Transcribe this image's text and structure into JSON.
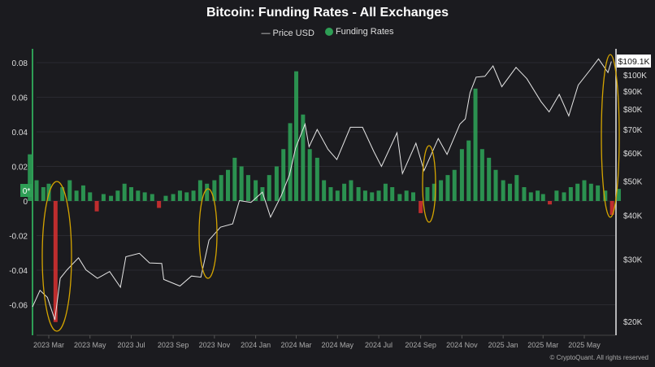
{
  "title": "Bitcoin: Funding Rates - All Exchanges",
  "legend": {
    "price": "— Price USD",
    "funding": "Funding Rates"
  },
  "watermark": "© CryptoQuant. All rights reserved",
  "colors": {
    "background": "#1b1b1f",
    "price": "#e6e6e6",
    "positive": "#2e9e55",
    "negative": "#d03030",
    "annotation": "#d4a400"
  },
  "chart_data": {
    "type": "bar+line",
    "title": "Bitcoin: Funding Rates - All Exchanges",
    "left_axis": {
      "ticks": [
        "0.08",
        "0.06",
        "0.04",
        "0.02",
        "0",
        "-0.02",
        "-0.04",
        "-0.06"
      ],
      "values": [
        0.08,
        0.06,
        0.04,
        0.02,
        0,
        -0.02,
        -0.04,
        -0.06
      ],
      "range": [
        -0.077,
        0.0865
      ]
    },
    "right_axis": {
      "scale": "log",
      "ticks": [
        "$100K",
        "$90K",
        "$80K",
        "$70K",
        "$60K",
        "$50K",
        "$40K",
        "$30K",
        "$20K"
      ],
      "values": [
        100000,
        90000,
        80000,
        70000,
        60000,
        50000,
        40000,
        30000,
        20000
      ],
      "current_label": "$109.1K",
      "current_value": 109100
    },
    "zero_label": "0*",
    "x_ticks": [
      {
        "label": "2023 Mar",
        "date": "2023-03-01"
      },
      {
        "label": "2023 May",
        "date": "2023-05-01"
      },
      {
        "label": "2023 Jul",
        "date": "2023-07-01"
      },
      {
        "label": "2023 Sep",
        "date": "2023-09-01"
      },
      {
        "label": "2023 Nov",
        "date": "2023-11-01"
      },
      {
        "label": "2024 Jan",
        "date": "2024-01-01"
      },
      {
        "label": "2024 Mar",
        "date": "2024-03-01"
      },
      {
        "label": "2024 May",
        "date": "2024-05-01"
      },
      {
        "label": "2024 Jul",
        "date": "2024-07-01"
      },
      {
        "label": "2024 Sep",
        "date": "2024-09-01"
      },
      {
        "label": "2024 Nov",
        "date": "2024-11-01"
      },
      {
        "label": "2025 Jan",
        "date": "2025-01-01"
      },
      {
        "label": "2025 Mar",
        "date": "2025-03-01"
      },
      {
        "label": "2025 May",
        "date": "2025-05-01"
      }
    ],
    "funding": {
      "name": "Funding Rates",
      "months": [
        "2023-02",
        "2023-03",
        "2023-04",
        "2023-05",
        "2023-06",
        "2023-07",
        "2023-08",
        "2023-09",
        "2023-10",
        "2023-11",
        "2023-12",
        "2024-01",
        "2024-02",
        "2024-03",
        "2024-04",
        "2024-05",
        "2024-06",
        "2024-07",
        "2024-08",
        "2024-09",
        "2024-10",
        "2024-11",
        "2024-12",
        "2025-01",
        "2025-02",
        "2025-03",
        "2025-04",
        "2025-05",
        "2025-06"
      ],
      "days": [
        1,
        11,
        21
      ],
      "values": [
        [
          0.027,
          0.012,
          0.008
        ],
        [
          0.01,
          -0.07,
          0.008
        ],
        [
          0.012,
          0.006,
          0.009
        ],
        [
          0.005,
          -0.006,
          0.004
        ],
        [
          0.003,
          0.006,
          0.01
        ],
        [
          0.008,
          0.006,
          0.005
        ],
        [
          0.004,
          -0.004,
          0.003
        ],
        [
          0.004,
          0.006,
          0.005
        ],
        [
          0.006,
          0.012,
          0.01
        ],
        [
          0.012,
          0.015,
          0.018
        ],
        [
          0.025,
          0.02,
          0.015
        ],
        [
          0.012,
          0.008,
          0.015
        ],
        [
          0.02,
          0.03,
          0.045
        ],
        [
          0.075,
          0.05,
          0.03
        ],
        [
          0.025,
          0.012,
          0.008
        ],
        [
          0.006,
          0.01,
          0.012
        ],
        [
          0.008,
          0.006,
          0.005
        ],
        [
          0.006,
          0.01,
          0.008
        ],
        [
          0.004,
          0.006,
          0.005
        ],
        [
          -0.007,
          0.008,
          0.01
        ],
        [
          0.012,
          0.015,
          0.018
        ],
        [
          0.03,
          0.035,
          0.065
        ],
        [
          0.03,
          0.025,
          0.018
        ],
        [
          0.012,
          0.01,
          0.015
        ],
        [
          0.008,
          0.005,
          0.006
        ],
        [
          0.004,
          -0.002,
          0.006
        ],
        [
          0.005,
          0.008,
          0.01
        ],
        [
          0.012,
          0.01,
          0.009
        ],
        [
          0.006,
          -0.008,
          0.007
        ]
      ]
    },
    "price": {
      "name": "Price USD",
      "points": [
        [
          "2023-02-05",
          22000
        ],
        [
          "2023-02-16",
          24500
        ],
        [
          "2023-02-27",
          23400
        ],
        [
          "2023-03-10",
          20200
        ],
        [
          "2023-03-18",
          26500
        ],
        [
          "2023-03-28",
          28000
        ],
        [
          "2023-04-14",
          30300
        ],
        [
          "2023-04-25",
          28000
        ],
        [
          "2023-05-12",
          26500
        ],
        [
          "2023-05-30",
          27700
        ],
        [
          "2023-06-15",
          25000
        ],
        [
          "2023-06-23",
          30500
        ],
        [
          "2023-07-13",
          31200
        ],
        [
          "2023-07-28",
          29300
        ],
        [
          "2023-08-15",
          29200
        ],
        [
          "2023-08-18",
          26300
        ],
        [
          "2023-09-11",
          25200
        ],
        [
          "2023-09-28",
          26900
        ],
        [
          "2023-10-12",
          26700
        ],
        [
          "2023-10-24",
          34000
        ],
        [
          "2023-11-10",
          37000
        ],
        [
          "2023-11-28",
          37800
        ],
        [
          "2023-12-08",
          44000
        ],
        [
          "2023-12-25",
          43500
        ],
        [
          "2024-01-11",
          46500
        ],
        [
          "2024-01-23",
          39500
        ],
        [
          "2024-02-08",
          45500
        ],
        [
          "2024-02-20",
          52000
        ],
        [
          "2024-02-29",
          62000
        ],
        [
          "2024-03-14",
          72500
        ],
        [
          "2024-03-20",
          62500
        ],
        [
          "2024-04-01",
          70000
        ],
        [
          "2024-04-17",
          61500
        ],
        [
          "2024-04-30",
          57500
        ],
        [
          "2024-05-20",
          71000
        ],
        [
          "2024-06-07",
          71000
        ],
        [
          "2024-06-24",
          60500
        ],
        [
          "2024-07-05",
          55000
        ],
        [
          "2024-07-28",
          68500
        ],
        [
          "2024-08-05",
          52500
        ],
        [
          "2024-08-25",
          64000
        ],
        [
          "2024-09-06",
          53500
        ],
        [
          "2024-09-27",
          66000
        ],
        [
          "2024-10-10",
          59500
        ],
        [
          "2024-10-29",
          72500
        ],
        [
          "2024-11-06",
          75000
        ],
        [
          "2024-11-13",
          89000
        ],
        [
          "2024-11-22",
          98500
        ],
        [
          "2024-12-05",
          99000
        ],
        [
          "2024-12-17",
          106000
        ],
        [
          "2024-12-30",
          92500
        ],
        [
          "2025-01-20",
          105000
        ],
        [
          "2025-02-05",
          97500
        ],
        [
          "2025-02-26",
          84000
        ],
        [
          "2025-03-10",
          78500
        ],
        [
          "2025-03-25",
          88000
        ],
        [
          "2025-04-08",
          76500
        ],
        [
          "2025-04-22",
          93500
        ],
        [
          "2025-05-10",
          103500
        ],
        [
          "2025-05-22",
          111000
        ],
        [
          "2025-06-05",
          101500
        ],
        [
          "2025-06-10",
          109100
        ]
      ]
    }
  }
}
